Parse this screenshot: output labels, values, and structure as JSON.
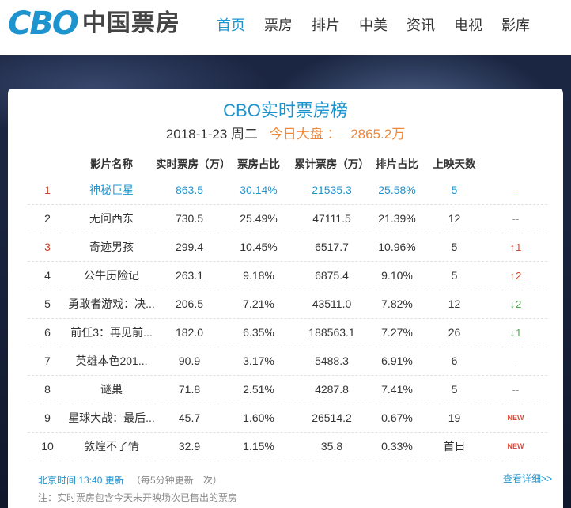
{
  "header": {
    "logo_mark": "CBO",
    "logo_cn": "中国票房",
    "nav": [
      "首页",
      "票房",
      "排片",
      "中美",
      "资讯",
      "电视",
      "影库"
    ],
    "active_nav": "首页"
  },
  "panel": {
    "title": "CBO实时票房榜",
    "date": "2018-1-23 周二",
    "total_label": "今日大盘 ：",
    "total_value": "2865.2万"
  },
  "table": {
    "headers": [
      "影片名称",
      "实时票房（万）",
      "票房占比",
      "累计票房（万）",
      "排片占比",
      "上映天数"
    ],
    "rows": [
      {
        "rank": "1",
        "name": "神秘巨星",
        "realtime": "863.5",
        "ratio": "30.14%",
        "cumulative": "21535.3",
        "screen": "25.58%",
        "days": "5",
        "trend": "--",
        "trend_type": "none"
      },
      {
        "rank": "2",
        "name": "无问西东",
        "realtime": "730.5",
        "ratio": "25.49%",
        "cumulative": "47111.5",
        "screen": "21.39%",
        "days": "12",
        "trend": "--",
        "trend_type": "none"
      },
      {
        "rank": "3",
        "name": "奇迹男孩",
        "realtime": "299.4",
        "ratio": "10.45%",
        "cumulative": "6517.7",
        "screen": "10.96%",
        "days": "5",
        "trend": "1",
        "trend_type": "up"
      },
      {
        "rank": "4",
        "name": "公牛历险记",
        "realtime": "263.1",
        "ratio": "9.18%",
        "cumulative": "6875.4",
        "screen": "9.10%",
        "days": "5",
        "trend": "2",
        "trend_type": "up"
      },
      {
        "rank": "5",
        "name": "勇敢者游戏：决...",
        "realtime": "206.5",
        "ratio": "7.21%",
        "cumulative": "43511.0",
        "screen": "7.82%",
        "days": "12",
        "trend": "2",
        "trend_type": "down"
      },
      {
        "rank": "6",
        "name": "前任3：再见前...",
        "realtime": "182.0",
        "ratio": "6.35%",
        "cumulative": "188563.1",
        "screen": "7.27%",
        "days": "26",
        "trend": "1",
        "trend_type": "down"
      },
      {
        "rank": "7",
        "name": "英雄本色201...",
        "realtime": "90.9",
        "ratio": "3.17%",
        "cumulative": "5488.3",
        "screen": "6.91%",
        "days": "6",
        "trend": "--",
        "trend_type": "none"
      },
      {
        "rank": "8",
        "name": "谜巢",
        "realtime": "71.8",
        "ratio": "2.51%",
        "cumulative": "4287.8",
        "screen": "7.41%",
        "days": "5",
        "trend": "--",
        "trend_type": "none"
      },
      {
        "rank": "9",
        "name": "星球大战：最后...",
        "realtime": "45.7",
        "ratio": "1.60%",
        "cumulative": "26514.2",
        "screen": "0.67%",
        "days": "19",
        "trend": "NEW",
        "trend_type": "new"
      },
      {
        "rank": "10",
        "name": "敦煌不了情",
        "realtime": "32.9",
        "ratio": "1.15%",
        "cumulative": "35.8",
        "screen": "0.33%",
        "days": "首日",
        "trend": "NEW",
        "trend_type": "new"
      }
    ]
  },
  "footer": {
    "update_time": "北京时间 13:40 更新",
    "update_note": "（每5分钟更新一次）",
    "more_link": "查看详细>>",
    "disclaimer": "注：实时票房包含今天未开映场次已售出的票房"
  },
  "colors": {
    "accent": "#1e94cf",
    "orange": "#f0883a",
    "rank_red": "#c8432b",
    "trend_up": "#d9452b",
    "trend_down": "#4ba94b"
  }
}
